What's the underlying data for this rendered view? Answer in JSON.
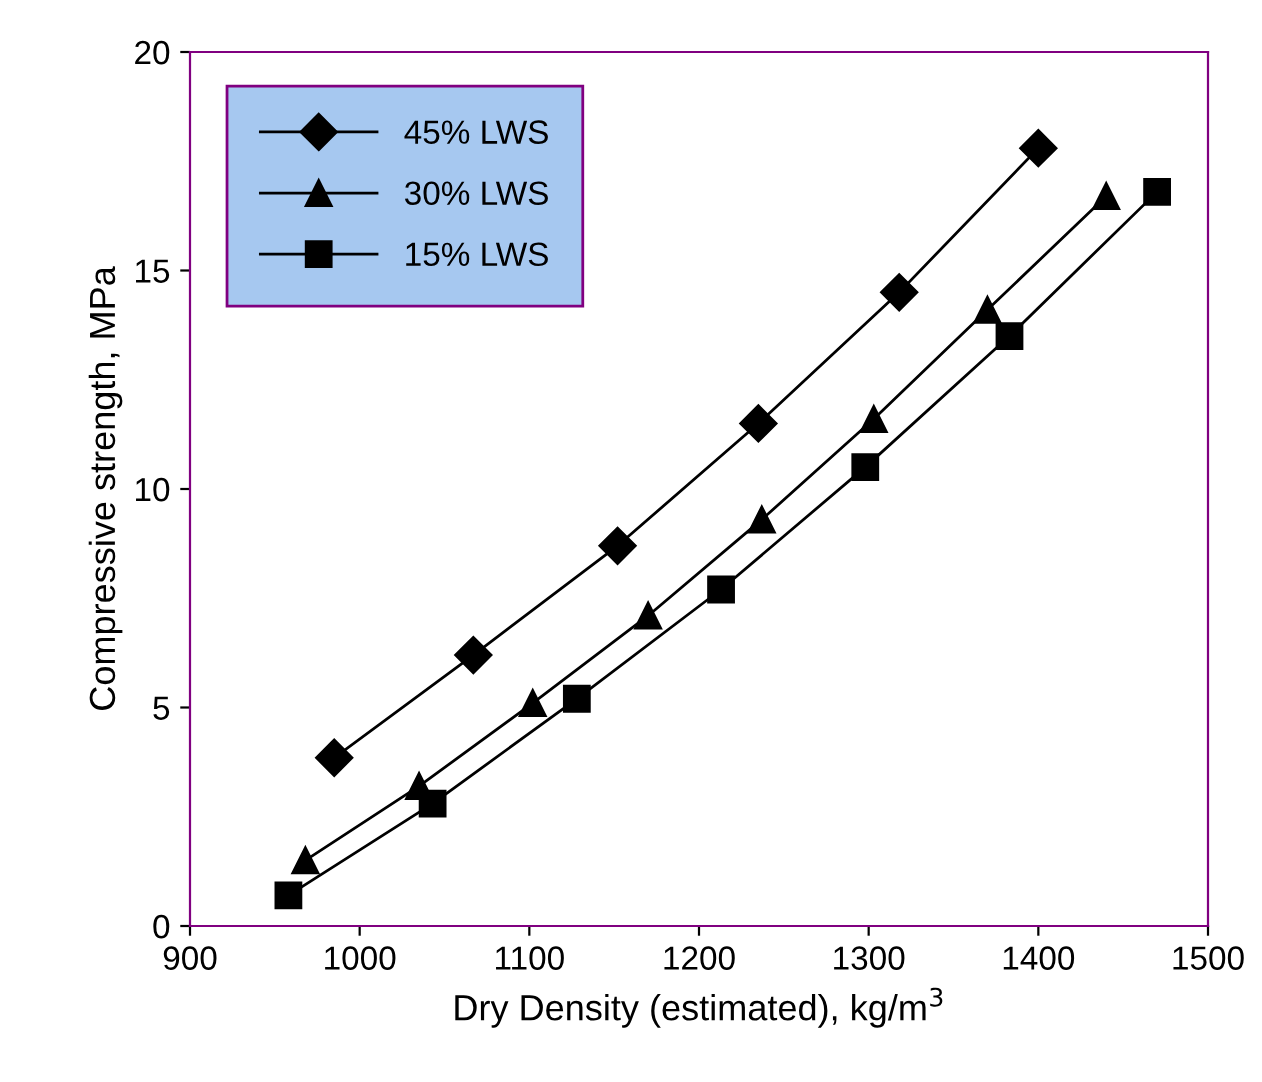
{
  "chart_data": {
    "type": "line",
    "xlabel": "Dry Density (estimated), kg/m$^{3}$",
    "ylabel": "Compressive strength, MPa",
    "xlim": [
      900,
      1500
    ],
    "xticks": [
      900,
      1000,
      1100,
      1200,
      1300,
      1400,
      1500
    ],
    "ylim": [
      0,
      20
    ],
    "yticks": [
      0,
      5,
      10,
      15,
      20
    ],
    "grid": false,
    "legend": "top left",
    "line_style": "solid",
    "series": [
      {
        "name": "45% LWS",
        "color": "#000000",
        "marker": "diamond",
        "x": [
          985,
          1067,
          1152,
          1235,
          1318,
          1400
        ],
        "values": [
          3.85,
          6.2,
          8.7,
          11.5,
          14.5,
          17.8
        ]
      },
      {
        "name": "30% LWS",
        "color": "#000000",
        "marker": "triangle",
        "x": [
          968,
          1035,
          1102,
          1170,
          1237,
          1303,
          1370,
          1440
        ],
        "values": [
          1.5,
          3.2,
          5.1,
          7.1,
          9.3,
          11.6,
          14.1,
          16.7
        ]
      },
      {
        "name": "15% LWS",
        "color": "#000000",
        "marker": "square",
        "x": [
          958,
          1043,
          1128,
          1213,
          1298,
          1383,
          1470
        ],
        "values": [
          0.7,
          2.8,
          5.2,
          7.7,
          10.5,
          13.5,
          16.8
        ]
      }
    ]
  }
}
